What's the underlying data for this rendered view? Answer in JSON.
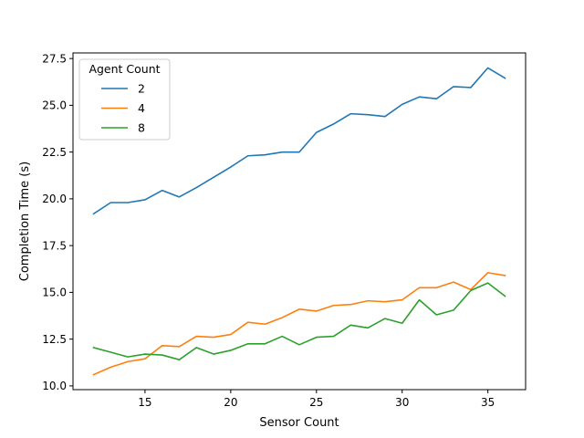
{
  "chart_data": {
    "type": "line",
    "xlabel": "Sensor Count",
    "ylabel": "Completion Time (s)",
    "xlim": [
      10.8,
      37.2
    ],
    "ylim": [
      9.8,
      27.8
    ],
    "xticks": [
      15,
      20,
      25,
      30,
      35
    ],
    "yticks": [
      10.0,
      12.5,
      15.0,
      17.5,
      20.0,
      22.5,
      25.0,
      27.5
    ],
    "grid": false,
    "legend": {
      "title": "Agent Count",
      "placement": "top-left"
    },
    "x": [
      12,
      13,
      14,
      15,
      16,
      17,
      18,
      19,
      20,
      21,
      22,
      23,
      24,
      25,
      26,
      27,
      28,
      29,
      30,
      31,
      32,
      33,
      34,
      35,
      36
    ],
    "series": [
      {
        "name": "2",
        "color": "#1f77b4",
        "values": [
          19.2,
          19.8,
          19.8,
          19.95,
          20.45,
          20.1,
          20.6,
          21.15,
          21.7,
          22.3,
          22.35,
          22.5,
          22.5,
          23.55,
          24.0,
          24.55,
          24.5,
          24.4,
          25.05,
          25.45,
          25.35,
          26.0,
          25.95,
          27.0,
          26.45
        ]
      },
      {
        "name": "4",
        "color": "#ff7f0e",
        "values": [
          10.6,
          11.0,
          11.3,
          11.45,
          12.15,
          12.1,
          12.65,
          12.6,
          12.75,
          13.4,
          13.3,
          13.65,
          14.1,
          14.0,
          14.3,
          14.35,
          14.55,
          14.5,
          14.6,
          15.25,
          15.25,
          15.55,
          15.15,
          16.05,
          15.9
        ]
      },
      {
        "name": "8",
        "color": "#2ca02c",
        "values": [
          12.05,
          11.8,
          11.55,
          11.7,
          11.65,
          11.4,
          12.05,
          11.7,
          11.9,
          12.25,
          12.25,
          12.65,
          12.2,
          12.6,
          12.65,
          13.25,
          13.1,
          13.6,
          13.35,
          14.6,
          13.8,
          14.05,
          15.1,
          15.5,
          14.8
        ]
      }
    ]
  }
}
